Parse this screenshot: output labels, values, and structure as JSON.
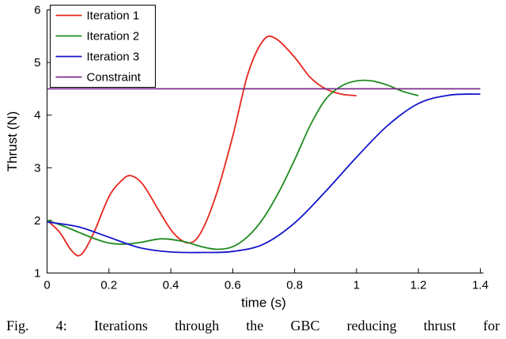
{
  "figure": {
    "caption": "Fig. 4: Iterations through the GBC reducing thrust for"
  },
  "colors": {
    "axis": "#000000",
    "background": "#ffffff",
    "iteration1": "#e8261d",
    "iteration2": "#1e8a1e",
    "iteration3": "#1414cc",
    "constraint": "#7b2d8e"
  },
  "chart_data": {
    "type": "line",
    "title": "",
    "xlabel": "time (s)",
    "ylabel": "Thrust (N)",
    "xlim": [
      0,
      1.4
    ],
    "ylim": [
      1,
      6
    ],
    "grid": false,
    "legend": {
      "position": "top-left",
      "border": true
    },
    "xticks": {
      "values": [
        0,
        0.2,
        0.4,
        0.6,
        0.8,
        1,
        1.2,
        1.4
      ],
      "labels": [
        "0",
        "0.2",
        "0.4",
        "0.6",
        "0.8",
        "1",
        "1.2",
        "1.4"
      ]
    },
    "yticks": {
      "values": [
        1,
        2,
        3,
        4,
        5,
        6
      ],
      "labels": [
        "1",
        "2",
        "3",
        "4",
        "5",
        "6"
      ]
    },
    "series": [
      {
        "name": "Iteration 1",
        "color": "#e8261d",
        "x": [
          0,
          0.04,
          0.08,
          0.11,
          0.15,
          0.2,
          0.24,
          0.27,
          0.31,
          0.36,
          0.41,
          0.46,
          0.5,
          0.55,
          0.6,
          0.65,
          0.7,
          0.74,
          0.8,
          0.85,
          0.9,
          0.95,
          1.0
        ],
        "y": [
          2.0,
          1.78,
          1.42,
          1.35,
          1.75,
          2.45,
          2.75,
          2.85,
          2.68,
          2.2,
          1.75,
          1.57,
          1.8,
          2.55,
          3.6,
          4.8,
          5.43,
          5.45,
          5.1,
          4.72,
          4.5,
          4.4,
          4.37
        ]
      },
      {
        "name": "Iteration 2",
        "color": "#1e8a1e",
        "x": [
          0,
          0.05,
          0.1,
          0.15,
          0.2,
          0.25,
          0.3,
          0.37,
          0.44,
          0.5,
          0.55,
          0.6,
          0.65,
          0.7,
          0.75,
          0.8,
          0.85,
          0.9,
          0.95,
          1.0,
          1.05,
          1.1,
          1.15,
          1.2
        ],
        "y": [
          2.0,
          1.9,
          1.78,
          1.66,
          1.57,
          1.55,
          1.58,
          1.65,
          1.6,
          1.5,
          1.45,
          1.5,
          1.7,
          2.05,
          2.55,
          3.15,
          3.8,
          4.3,
          4.55,
          4.65,
          4.65,
          4.57,
          4.45,
          4.37
        ]
      },
      {
        "name": "Iteration 3",
        "color": "#1414cc",
        "x": [
          0,
          0.1,
          0.2,
          0.3,
          0.4,
          0.5,
          0.6,
          0.7,
          0.8,
          0.9,
          1.0,
          1.1,
          1.2,
          1.3,
          1.4
        ],
        "y": [
          1.97,
          1.88,
          1.68,
          1.48,
          1.4,
          1.39,
          1.41,
          1.55,
          1.95,
          2.55,
          3.2,
          3.8,
          4.22,
          4.38,
          4.4
        ]
      },
      {
        "name": "Constraint",
        "color": "#7b2d8e",
        "x": [
          0,
          1.4
        ],
        "y": [
          4.5,
          4.5
        ]
      }
    ]
  }
}
